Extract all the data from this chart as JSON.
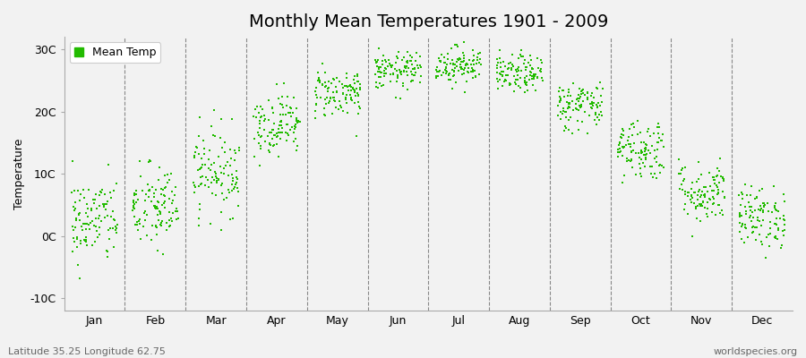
{
  "title": "Monthly Mean Temperatures 1901 - 2009",
  "ylabel": "Temperature",
  "xlabel_labels": [
    "Jan",
    "Feb",
    "Mar",
    "Apr",
    "May",
    "Jun",
    "Jul",
    "Aug",
    "Sep",
    "Oct",
    "Nov",
    "Dec"
  ],
  "ytick_labels": [
    "-10C",
    "0C",
    "10C",
    "20C",
    "30C"
  ],
  "ytick_values": [
    -10,
    0,
    10,
    20,
    30
  ],
  "ylim": [
    -12,
    32
  ],
  "legend_label": "Mean Temp",
  "dot_color": "#22bb00",
  "dot_size": 3,
  "subtitle_left": "Latitude 35.25 Longitude 62.75",
  "subtitle_right": "worldspecies.org",
  "background_color": "#f2f2f2",
  "plot_bg_color": "#f2f2f2",
  "monthly_means": [
    2.5,
    4.5,
    10.5,
    18.0,
    23.0,
    26.5,
    27.5,
    26.0,
    21.0,
    14.0,
    7.0,
    3.0
  ],
  "monthly_stds": [
    3.5,
    3.5,
    3.5,
    2.5,
    2.0,
    1.5,
    1.5,
    1.5,
    2.0,
    2.5,
    2.5,
    2.5
  ],
  "n_years": 109,
  "seed": 42,
  "title_fontsize": 14,
  "axis_fontsize": 9,
  "legend_fontsize": 9
}
